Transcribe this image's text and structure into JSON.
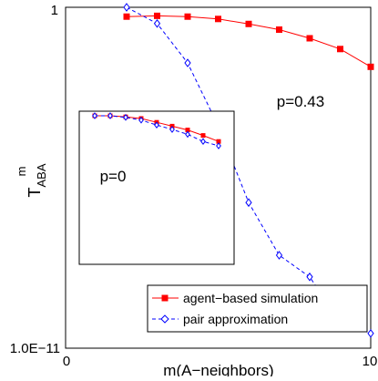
{
  "chart_data": [
    {
      "panel": "main",
      "type": "line",
      "xlabel": "m(A−neighbors)",
      "ylabel_main": "T",
      "ylabel_sup": "m",
      "ylabel_sub": "ABA",
      "xlim": [
        0,
        10
      ],
      "x_tick_labels": [
        "0",
        "10"
      ],
      "y_scale": "log",
      "y_tick_labels": [
        "1.0E−11",
        "1"
      ],
      "annotation": "p=0.43",
      "legend_position": "bottom-right",
      "series": [
        {
          "name": "agent−based simulation",
          "color": "#ff0000",
          "marker": "filled-square",
          "line": "solid",
          "x": [
            2,
            3,
            4,
            5,
            6,
            7,
            8,
            9,
            10
          ],
          "y": [
            0.5,
            0.53,
            0.5,
            0.42,
            0.29,
            0.19,
            0.1,
            0.045,
            0.012
          ]
        },
        {
          "name": "pair approximation",
          "color": "#0000ff",
          "marker": "open-diamond",
          "line": "dashed",
          "x": [
            2,
            3,
            4,
            5,
            6,
            7,
            8,
            9,
            10
          ],
          "y": [
            1.0,
            0.3,
            0.016,
            0.00015,
            5e-07,
            1e-08,
            2e-09,
            7e-11,
            3e-11
          ]
        }
      ]
    },
    {
      "panel": "inset",
      "type": "line",
      "annotation": "p=0",
      "series": [
        {
          "name": "agent−based simulation",
          "color": "#ff0000",
          "marker": "filled-square",
          "line": "solid",
          "x": [
            1,
            2,
            3,
            4,
            5,
            6,
            7,
            8,
            9
          ],
          "y": [
            0.0,
            0.0,
            0.02,
            0.05,
            0.12,
            0.19,
            0.26,
            0.36,
            0.47
          ]
        },
        {
          "name": "pair approximation",
          "color": "#0000ff",
          "marker": "open-diamond",
          "line": "dashed",
          "x": [
            1,
            2,
            3,
            4,
            5,
            6,
            7,
            8,
            9
          ],
          "y": [
            0.0,
            0.0,
            0.03,
            0.08,
            0.17,
            0.25,
            0.34,
            0.47,
            0.55
          ]
        }
      ]
    }
  ]
}
